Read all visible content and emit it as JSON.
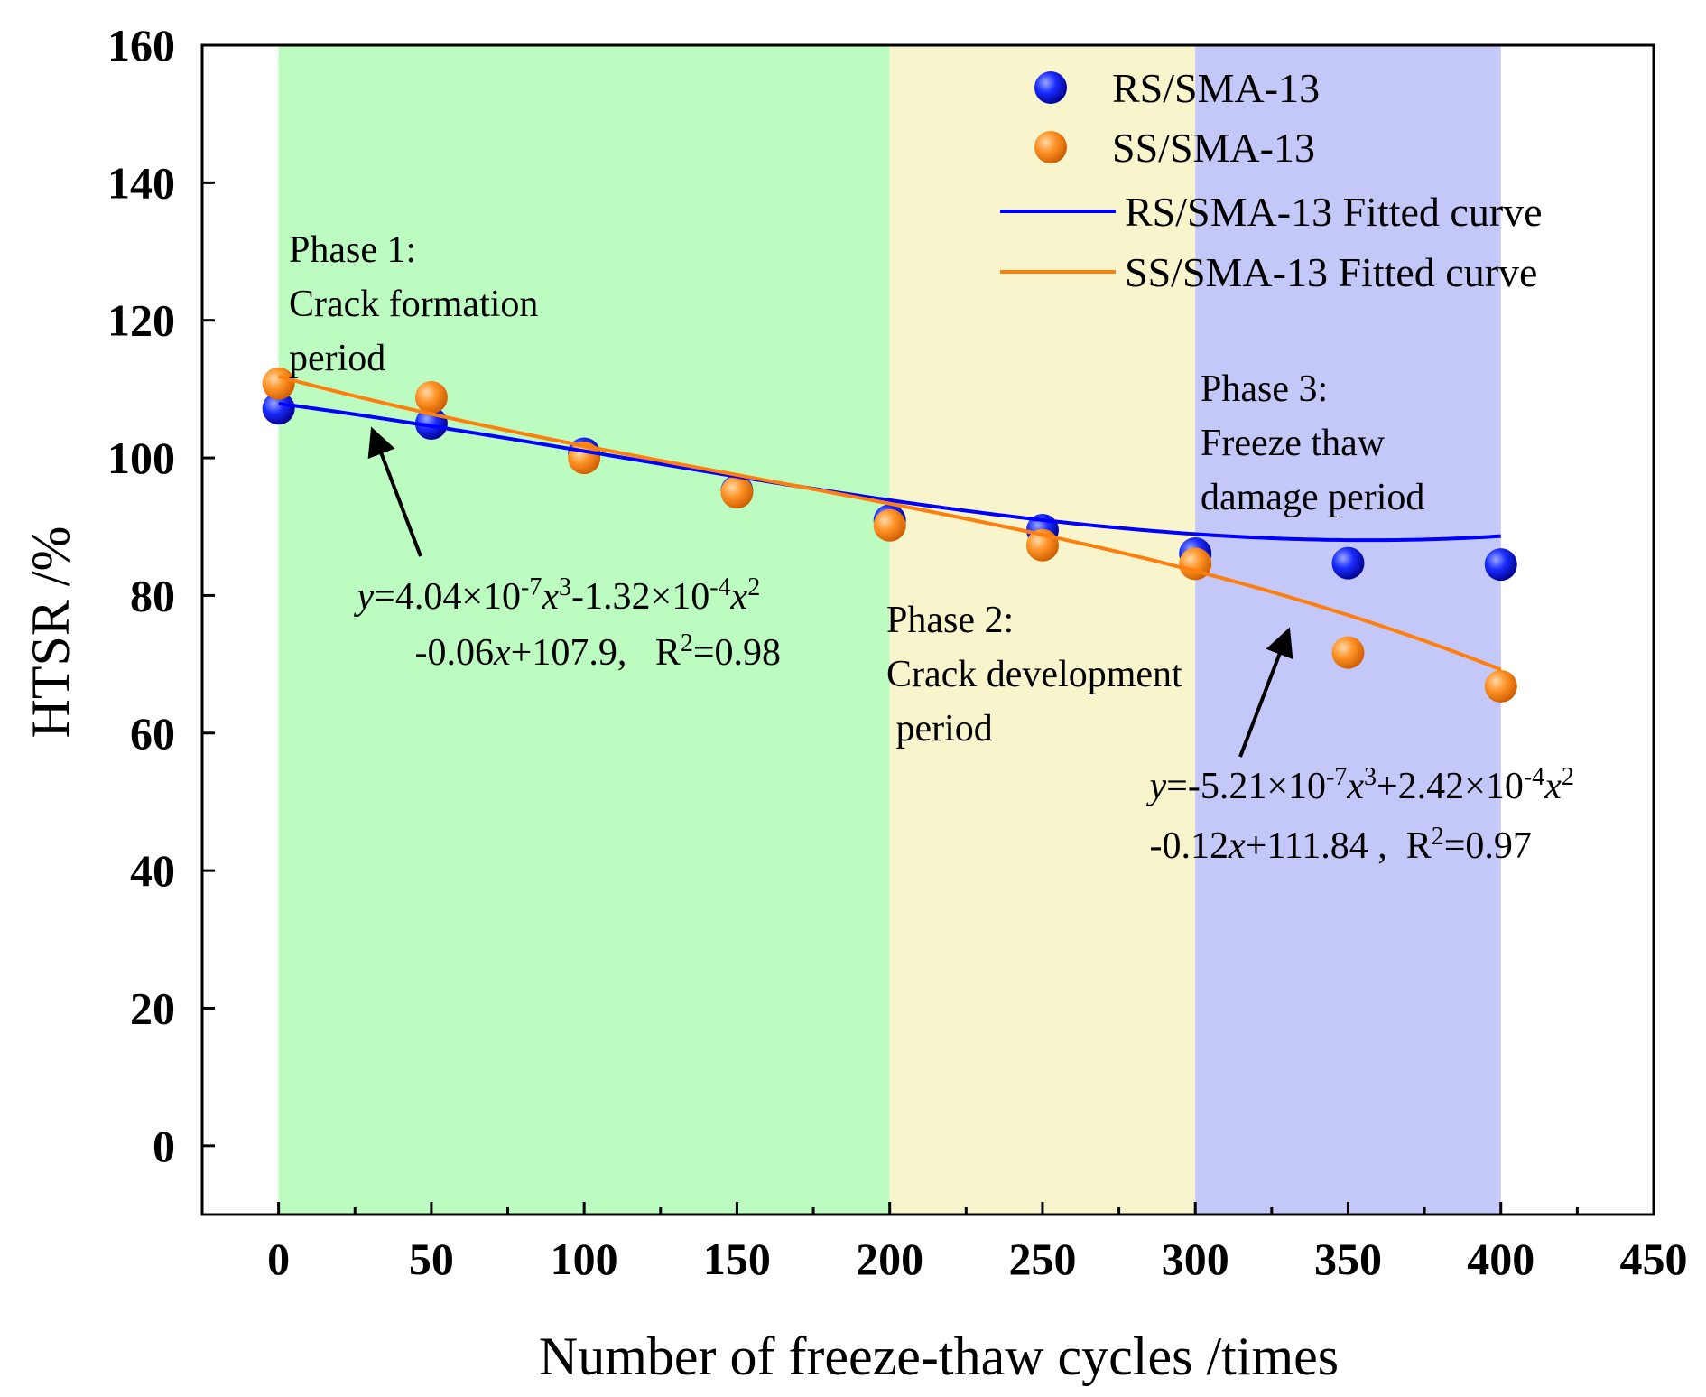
{
  "chart_data": {
    "type": "scatter",
    "xlabel": "Number of freeze-thaw cycles /times",
    "ylabel": "HTSR /%",
    "xlim": [
      -25,
      450
    ],
    "ylim": [
      -10,
      160
    ],
    "x_ticks": [
      0,
      50,
      100,
      150,
      200,
      250,
      300,
      350,
      400,
      450
    ],
    "y_ticks": [
      0,
      20,
      40,
      60,
      80,
      100,
      120,
      140,
      160
    ],
    "legend_position": "top-right",
    "series": [
      {
        "name": "RS/SMA-13",
        "kind": "scatter",
        "color": "#0a0aff",
        "x": [
          0,
          50,
          100,
          150,
          200,
          250,
          300,
          350,
          400
        ],
        "y": [
          107.2,
          105.0,
          100.6,
          95.2,
          90.9,
          89.5,
          86.1,
          84.7,
          84.5
        ]
      },
      {
        "name": "SS/SMA-13",
        "kind": "scatter",
        "color": "#ff8c1a",
        "x": [
          0,
          50,
          100,
          150,
          200,
          250,
          300,
          350,
          400
        ],
        "y": [
          110.8,
          108.8,
          100.0,
          95.0,
          90.2,
          87.3,
          84.6,
          71.7,
          66.8
        ]
      },
      {
        "name": "RS/SMA-13 Fitted curve",
        "kind": "line",
        "color": "#0000ff",
        "coefficients": [
          107.9,
          -0.06,
          -0.000132,
          4.04e-07
        ],
        "x_range": [
          0,
          400
        ]
      },
      {
        "name": "SS/SMA-13 Fitted curve",
        "kind": "line",
        "color": "#ff7f0e",
        "coefficients": [
          111.84,
          -0.12,
          0.000242,
          -5.21e-07
        ],
        "x_range": [
          0,
          400
        ]
      }
    ],
    "regions": [
      {
        "x": [
          0,
          200
        ],
        "color": "#bcfcc0"
      },
      {
        "x": [
          200,
          300
        ],
        "color": "#f8f4cc"
      },
      {
        "x": [
          300,
          400
        ],
        "color": "#c4c8f8"
      }
    ],
    "annotations": {
      "phase1": [
        "Phase 1:",
        "Crack formation",
        "period"
      ],
      "phase2": [
        "Phase 2:",
        "Crack development",
        " period"
      ],
      "phase3": [
        "Phase 3:",
        "Freeze thaw",
        "damage period"
      ],
      "eq_rs": {
        "line1": [
          "y",
          "=4.04×10",
          "-7",
          "x",
          "3",
          "-1.32×10",
          "-4",
          "x",
          "2"
        ],
        "line2": [
          "-0.06",
          "x",
          "+107.9,   R",
          "2",
          "=0.98"
        ]
      },
      "eq_ss": {
        "line1": [
          "y",
          "=-5.21×10",
          "-7",
          "x",
          "3",
          "+2.42×10",
          "-4",
          "x",
          "2"
        ],
        "line2": [
          "-0.12",
          "x",
          "+111.84 ,  R",
          "2",
          "=0.97"
        ]
      }
    }
  }
}
